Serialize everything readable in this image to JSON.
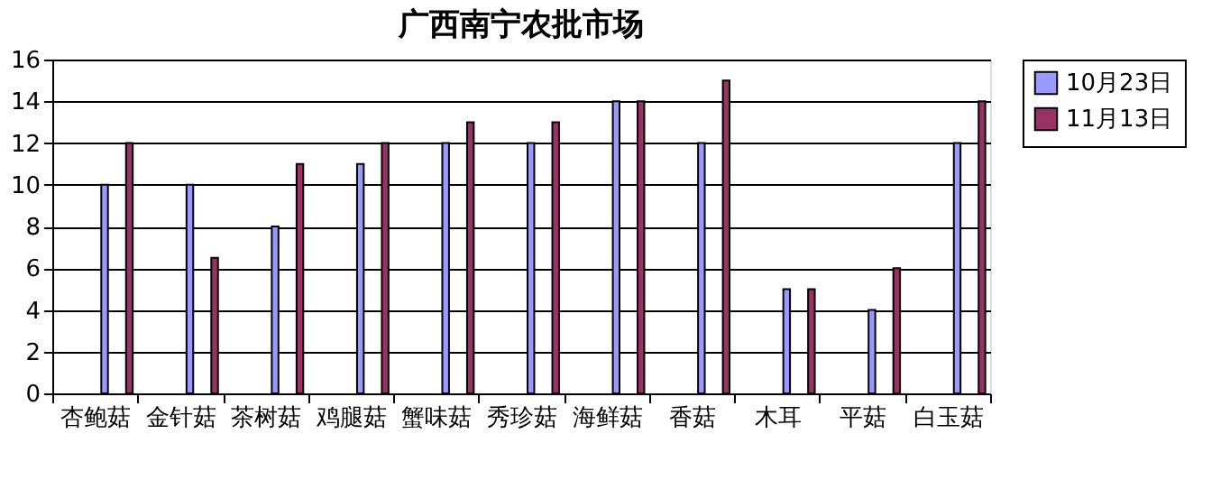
{
  "chart_data": {
    "type": "bar",
    "title": "广西南宁农批市场",
    "categories": [
      "杏鲍菇",
      "金针菇",
      "茶树菇",
      "鸡腿菇",
      "蟹味菇",
      "秀珍菇",
      "海鲜菇",
      "香菇",
      "木耳",
      "平菇",
      "白玉菇"
    ],
    "series": [
      {
        "name": "10月23日",
        "color": "#9999ff",
        "values": [
          10,
          10,
          8,
          11,
          12,
          12,
          14,
          12,
          5,
          4,
          12
        ]
      },
      {
        "name": "11月13日",
        "color": "#993366",
        "values": [
          12,
          6.5,
          11,
          12,
          13,
          13,
          14,
          15,
          5,
          6,
          14
        ]
      }
    ],
    "ylim": [
      0,
      16
    ],
    "yticks": [
      0,
      2,
      4,
      6,
      8,
      10,
      12,
      14,
      16
    ],
    "grid": "y",
    "legend": "right"
  }
}
